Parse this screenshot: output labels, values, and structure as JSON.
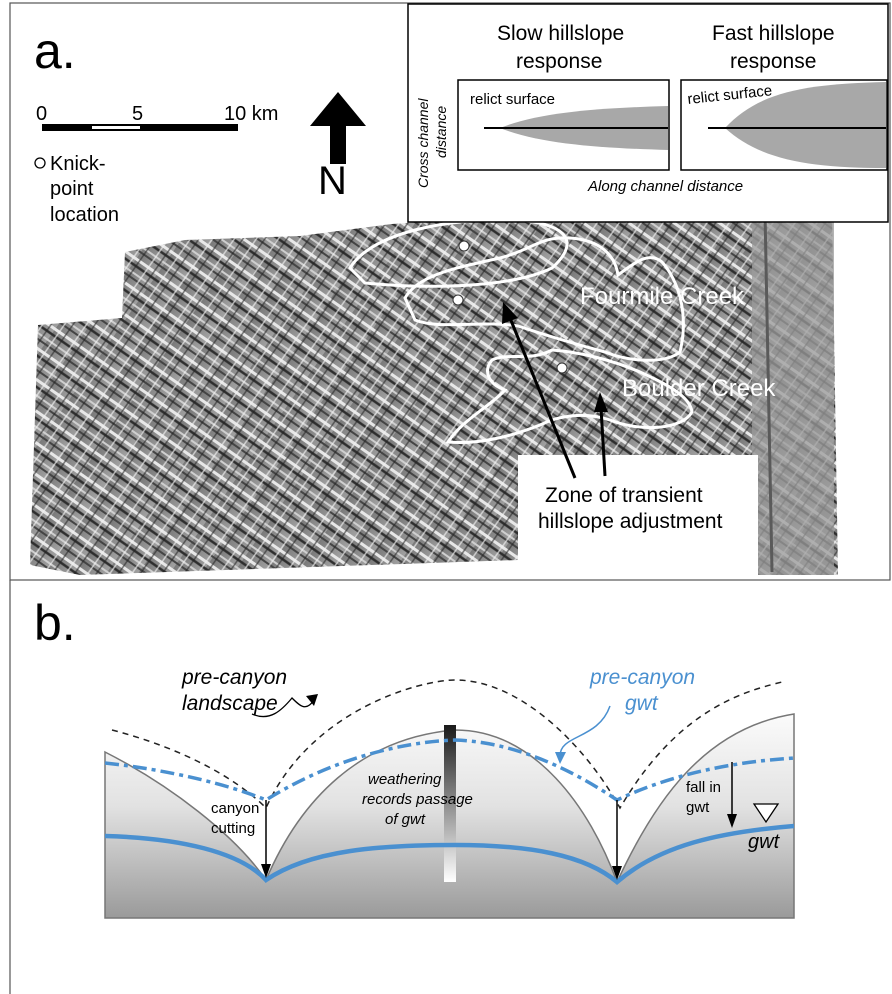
{
  "panel_a": {
    "label": "a.",
    "scale_bar": {
      "tick_0": "0",
      "tick_5": "5",
      "tick_10": "10 km"
    },
    "north_arrow": {
      "letter": "N"
    },
    "legend": {
      "line1": "Knick-",
      "line2": "point",
      "line3": "location"
    },
    "creeks": {
      "fourmile": "Fourmile Creek",
      "boulder": "Boulder Creek"
    },
    "zone_label": {
      "line1": "Zone of transient",
      "line2": "hillslope adjustment"
    },
    "inset": {
      "slow_title_line1": "Slow hillslope",
      "slow_title_line2": "response",
      "fast_title_line1": "Fast hillslope",
      "fast_title_line2": "response",
      "relict_slow": "relict surface",
      "relict_fast": "relict surface",
      "y_axis_line1": "Cross channel",
      "y_axis_line2": "distance",
      "x_axis": "Along channel distance"
    }
  },
  "panel_b": {
    "label": "b.",
    "pre_canyon_landscape_line1": "pre-canyon",
    "pre_canyon_landscape_line2": "landscape",
    "pre_canyon_gwt_line1": "pre-canyon",
    "pre_canyon_gwt_line2": "gwt",
    "canyon_cutting_line1": "canyon",
    "canyon_cutting_line2": "cutting",
    "weathering_line1": "weathering",
    "weathering_line2": "records passage",
    "weathering_line3": "of gwt",
    "fall_line1": "fall in",
    "fall_line2": "gwt",
    "gwt": "gwt"
  },
  "colors": {
    "gwt_blue": "#4a90d0",
    "relief_dark": "#3a3a3a",
    "relief_light": "#d9d9d9",
    "inset_fill": "#a8a8a8"
  }
}
